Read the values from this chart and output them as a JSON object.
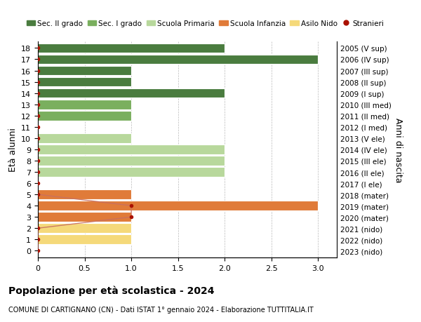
{
  "ages": [
    18,
    17,
    16,
    15,
    14,
    13,
    12,
    11,
    10,
    9,
    8,
    7,
    6,
    5,
    4,
    3,
    2,
    1,
    0
  ],
  "right_labels": [
    "2005 (V sup)",
    "2006 (IV sup)",
    "2007 (III sup)",
    "2008 (II sup)",
    "2009 (I sup)",
    "2010 (III med)",
    "2011 (II med)",
    "2012 (I med)",
    "2013 (V ele)",
    "2014 (IV ele)",
    "2015 (III ele)",
    "2016 (II ele)",
    "2017 (I ele)",
    "2018 (mater)",
    "2019 (mater)",
    "2020 (mater)",
    "2021 (nido)",
    "2022 (nido)",
    "2023 (nido)"
  ],
  "bar_values": [
    2,
    3,
    1,
    1,
    2,
    1,
    1,
    0,
    1,
    2,
    2,
    2,
    0,
    1,
    3,
    1,
    1,
    1,
    0
  ],
  "bar_colors": [
    "#4a7c3f",
    "#4a7c3f",
    "#4a7c3f",
    "#4a7c3f",
    "#4a7c3f",
    "#7aaf5e",
    "#7aaf5e",
    "#7aaf5e",
    "#b8d89c",
    "#b8d89c",
    "#b8d89c",
    "#b8d89c",
    "#b8d89c",
    "#e07b39",
    "#e07b39",
    "#e07b39",
    "#f5d97a",
    "#f5d97a",
    "#f5d97a"
  ],
  "stranieri_values": [
    0,
    0,
    0,
    0,
    0,
    0,
    0,
    0,
    0,
    0,
    0,
    0,
    0,
    0,
    1,
    1,
    0,
    0,
    0
  ],
  "stranieri_color": "#aa1100",
  "stranieri_line_color": "#c87060",
  "legend_labels": [
    "Sec. II grado",
    "Sec. I grado",
    "Scuola Primaria",
    "Scuola Infanzia",
    "Asilo Nido",
    "Stranieri"
  ],
  "legend_colors": [
    "#4a7c3f",
    "#7aaf5e",
    "#b8d89c",
    "#e07b39",
    "#f5d97a",
    "#aa1100"
  ],
  "title": "Popolazione per età scolastica - 2024",
  "subtitle": "COMUNE DI CARTIGNANO (CN) - Dati ISTAT 1° gennaio 2024 - Elaborazione TUTTITALIA.IT",
  "ylabel": "Età alunni",
  "y2label": "Anni di nascita",
  "xlabel_vals": [
    0,
    0.5,
    1.0,
    1.5,
    2.0,
    2.5,
    3.0
  ],
  "xlim": [
    0,
    3.2
  ],
  "bar_height": 0.85,
  "background_color": "#ffffff",
  "grid_color": "#bbbbbb"
}
